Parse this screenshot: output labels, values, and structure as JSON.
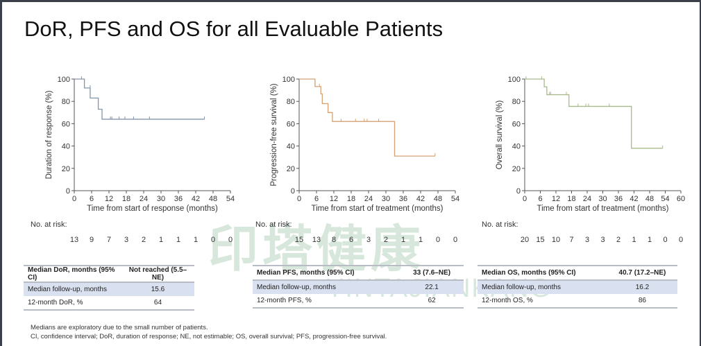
{
  "title": "DoR, PFS and OS for all Evaluable Patients",
  "watermark": {
    "chinese": "印塔健康",
    "latin": "YINTAJIANKANG"
  },
  "chart_data": [
    {
      "type": "line",
      "subtype": "kaplan-meier step",
      "ylabel": "Duration of response (%)",
      "xlabel": "Time from start of response (months)",
      "xlim": [
        0,
        54
      ],
      "ylim": [
        0,
        100
      ],
      "xticks": [
        0,
        6,
        12,
        18,
        24,
        30,
        36,
        42,
        48,
        54
      ],
      "yticks": [
        0,
        20,
        40,
        60,
        80,
        100
      ],
      "color": "#8395aa",
      "steps": [
        [
          0,
          100
        ],
        [
          3.5,
          92
        ],
        [
          5.5,
          83
        ],
        [
          8.3,
          73
        ],
        [
          9.6,
          64
        ],
        [
          45,
          64
        ]
      ],
      "censored": [
        [
          2.5,
          100
        ],
        [
          5.5,
          92
        ],
        [
          12.5,
          64
        ],
        [
          13,
          64
        ],
        [
          15.5,
          64
        ],
        [
          17.5,
          64
        ],
        [
          20.5,
          64
        ],
        [
          26,
          64
        ],
        [
          45,
          64
        ]
      ],
      "risk_label": "No. at risk:",
      "at_risk": [
        13,
        9,
        7,
        3,
        2,
        1,
        1,
        1,
        0,
        0
      ]
    },
    {
      "type": "line",
      "subtype": "kaplan-meier step",
      "ylabel": "Progression-free survival (%)",
      "xlabel": "Time from start of treatment (months)",
      "xlim": [
        0,
        54
      ],
      "ylim": [
        0,
        100
      ],
      "xticks": [
        0,
        6,
        12,
        18,
        24,
        30,
        36,
        42,
        48,
        54
      ],
      "yticks": [
        0,
        20,
        40,
        60,
        80,
        100
      ],
      "color": "#d4a274",
      "steps": [
        [
          0,
          100
        ],
        [
          5.5,
          93.3
        ],
        [
          7.5,
          86.7
        ],
        [
          8,
          78
        ],
        [
          10,
          70
        ],
        [
          11.5,
          62
        ],
        [
          33,
          31
        ],
        [
          47,
          31
        ]
      ],
      "censored": [
        [
          7,
          93.3
        ],
        [
          14.5,
          62
        ],
        [
          19.5,
          62
        ],
        [
          22.5,
          62
        ],
        [
          23.5,
          62
        ],
        [
          27.5,
          62
        ],
        [
          47,
          31
        ]
      ],
      "risk_label": "No. at risk:",
      "at_risk": [
        15,
        13,
        8,
        6,
        3,
        2,
        1,
        1,
        0,
        0
      ]
    },
    {
      "type": "line",
      "subtype": "kaplan-meier step",
      "ylabel": "Overall survival (%)",
      "xlabel": "Time from start of treatment (months)",
      "xlim": [
        0,
        60
      ],
      "ylim": [
        0,
        100
      ],
      "xticks": [
        0,
        6,
        12,
        18,
        24,
        30,
        36,
        42,
        48,
        54,
        60
      ],
      "yticks": [
        0,
        20,
        40,
        60,
        80,
        100
      ],
      "color": "#a9b98c",
      "steps": [
        [
          0,
          100
        ],
        [
          7.5,
          93
        ],
        [
          8.5,
          86
        ],
        [
          17,
          75.5
        ],
        [
          41,
          38
        ],
        [
          53,
          38
        ]
      ],
      "censored": [
        [
          0.5,
          100
        ],
        [
          6.5,
          100
        ],
        [
          9.5,
          86
        ],
        [
          10,
          86
        ],
        [
          16,
          86
        ],
        [
          20.5,
          75.5
        ],
        [
          23.5,
          75.5
        ],
        [
          24.5,
          75.5
        ],
        [
          32.5,
          75.5
        ],
        [
          53,
          38
        ]
      ],
      "risk_label": "No. at risk:",
      "at_risk": [
        20,
        15,
        10,
        7,
        3,
        3,
        2,
        1,
        1,
        0,
        0
      ]
    }
  ],
  "tables": [
    {
      "rows": [
        [
          "Median DoR, months (95%  CI)",
          "Not reached (5.5–NE)"
        ],
        [
          "Median follow-up,  months",
          "15.6"
        ],
        [
          "12-month  DoR, %",
          "64"
        ]
      ]
    },
    {
      "rows": [
        [
          "Median PFS, months (95%  CI)",
          "33 (7.6–NE)"
        ],
        [
          "Median follow-up,  months",
          "22.1"
        ],
        [
          "12-month  PFS, %",
          "62"
        ]
      ]
    },
    {
      "rows": [
        [
          "Median OS, months (95%  CI)",
          "40.7 (17.2–NE)"
        ],
        [
          "Median follow-up,  months",
          "16.2"
        ],
        [
          "12-month  OS, %",
          "86"
        ]
      ]
    }
  ],
  "footnotes": [
    "Medians are exploratory due to the small number of patients.",
    "CI, confidence interval; DoR, duration of response; NE, not estimable; OS, overall  survival;  PFS, progression-free  survival."
  ]
}
